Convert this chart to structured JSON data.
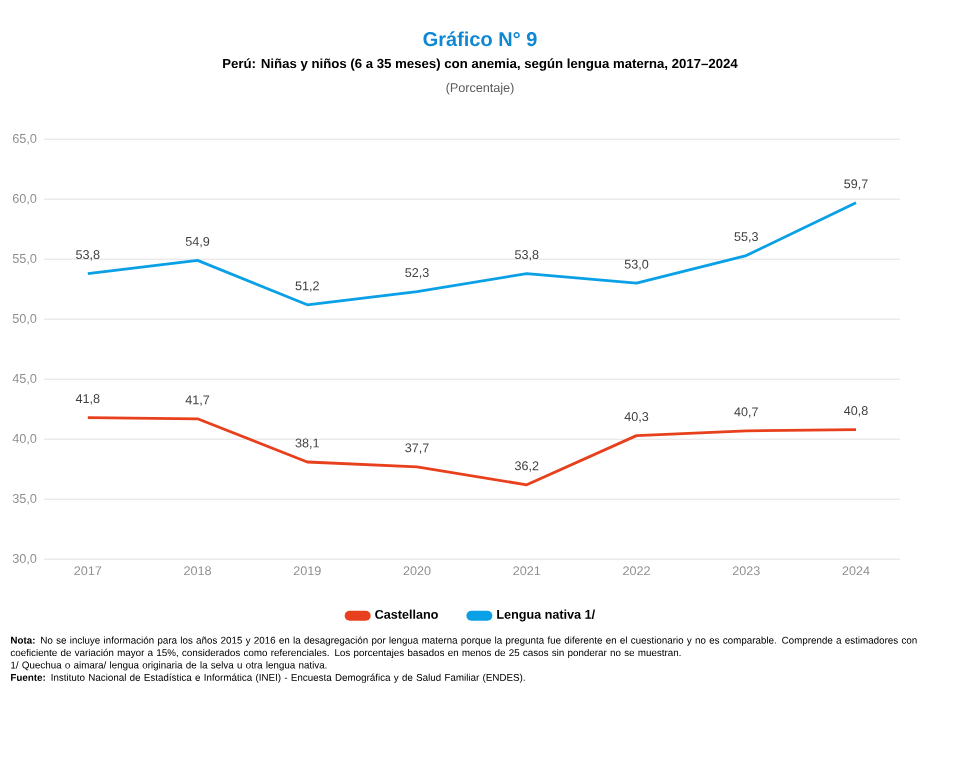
{
  "chart_data": {
    "type": "line",
    "title": "Gráfico N° 9",
    "subtitle": "Perú: Niñas y niños (6 a 35 meses) con anemia, según lengua materna, 2017–2024",
    "categories": [
      "2017",
      "2018",
      "2019",
      "2020",
      "2021",
      "2022",
      "2023",
      "2024"
    ],
    "series": [
      {
        "name": "Castellano",
        "color": "#e8401c",
        "values": [
          41.8,
          41.7,
          38.1,
          37.7,
          36.2,
          40.3,
          40.7,
          40.8
        ],
        "value_labels": [
          "41,8",
          "41,7",
          "38,1",
          "37,7",
          "36,2",
          "40,3",
          "40,7",
          "40,8"
        ]
      },
      {
        "name": "Lengua nativa 1/",
        "color": "#0aa0e6",
        "values": [
          53.8,
          54.9,
          51.2,
          52.3,
          53.8,
          53.0,
          55.3,
          59.7
        ],
        "value_labels": [
          "53,8",
          "54,9",
          "51,2",
          "52,3",
          "53,8",
          "53,0",
          "55,3",
          "59,7"
        ]
      }
    ],
    "ylim": [
      30,
      65
    ],
    "yticks": [
      {
        "value": 30,
        "label": "30,0"
      },
      {
        "value": 35,
        "label": "35,0"
      },
      {
        "value": 40,
        "label": "40,0"
      },
      {
        "value": 45,
        "label": "45,0"
      },
      {
        "value": 50,
        "label": "50,0"
      },
      {
        "value": 55,
        "label": "55,0"
      },
      {
        "value": 60,
        "label": "60,0"
      },
      {
        "value": 65,
        "label": "65,0"
      }
    ],
    "grid": "y",
    "legend": "bottom",
    "marker": "none",
    "line_style": "solid",
    "annotations": [
      "(Porcentaje)",
      "**Nota:** No se incluye información para los años 2015 y 2016 en la desagregación por lengua materna porque la pregunta fue diferente en el cuestionario y no es comparable. Comprende a estimadores con coeficiente de variación mayor a 15%, considerados como referenciales. Los porcentajes basados en menos de 25 casos sin ponderar no se muestran.",
      "1/ Quechua o aimara/ lengua originaria de la selva u otra lengua nativa.",
      "**Fuente:** Instituto Nacional de Estadística e Informática (INEI) - Encuesta Demográfica y de Salud Familiar (ENDES)."
    ]
  }
}
